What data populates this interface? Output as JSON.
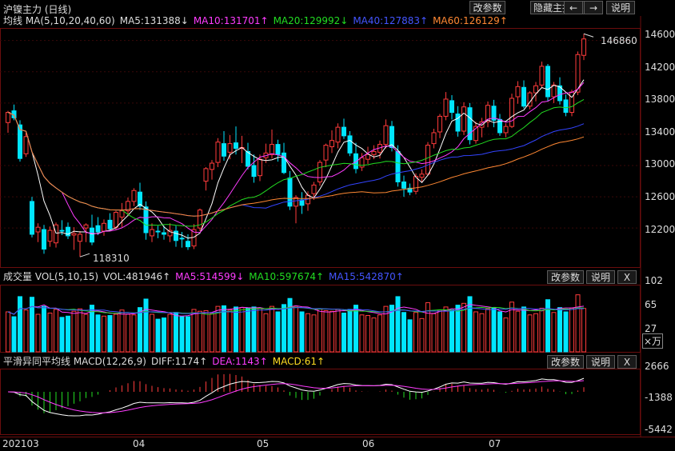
{
  "title": "沪镍主力 (日线)",
  "toolbar": {
    "params": "改参数",
    "hide_indicators": "隐藏主指标",
    "prev": "←",
    "next": "→",
    "help": "说明"
  },
  "price_panel": {
    "indicator": "均线 MA(5,10,20,40,60)",
    "mas": [
      {
        "label": "MA5:131388↓",
        "color": "#ffffff"
      },
      {
        "label": "MA10:131701↑",
        "color": "#ff3cff"
      },
      {
        "label": "MA20:129992↓",
        "color": "#22dd22"
      },
      {
        "label": "MA40:127883↑",
        "color": "#3344ff"
      },
      {
        "label": "MA60:126129↑",
        "color": "#ff8833"
      }
    ],
    "y_ticks": [
      "146000",
      "142000",
      "138000",
      "134000",
      "130000",
      "126000",
      "122000"
    ],
    "high_label": "146860",
    "low_label": "118310"
  },
  "volume_panel": {
    "indicator": "成交量 VOL(5,10,15)",
    "vol": {
      "label": "VOL:481946↑",
      "color": "#dddddd"
    },
    "mas": [
      {
        "label": "MA5:514599↓",
        "color": "#ff3cff"
      },
      {
        "label": "MA10:597674↑",
        "color": "#22dd22"
      },
      {
        "label": "MA15:542870↑",
        "color": "#4455ff"
      }
    ],
    "params": "改参数",
    "help": "说明",
    "close": "X",
    "y_ticks": [
      "102",
      "65",
      "27"
    ],
    "unit": "×万"
  },
  "macd_panel": {
    "indicator": "平滑异同平均线 MACD(12,26,9)",
    "diff": {
      "label": "DIFF:1174↑",
      "color": "#dddddd"
    },
    "dea": {
      "label": "DEA:1143↑",
      "color": "#ff3cff"
    },
    "macd": {
      "label": "MACD:61↑",
      "color": "#ffdd22"
    },
    "params": "改参数",
    "help": "说明",
    "close": "X",
    "y_ticks": [
      "2666",
      "-1388",
      "-5442"
    ]
  },
  "x_axis": [
    "202103",
    "04",
    "05",
    "06",
    "07"
  ],
  "chart_data": {
    "type": "candlestick",
    "title": "沪镍主力 (日线)",
    "price_axis_ticks": [
      146000,
      142000,
      138000,
      134000,
      130000,
      126000,
      122000
    ],
    "price_range": [
      117000,
      147500
    ],
    "candles": [
      [
        135500,
        137000,
        134200,
        136800
      ],
      [
        137000,
        137800,
        135800,
        136100
      ],
      [
        135200,
        135800,
        130500,
        130900
      ],
      [
        131500,
        134200,
        131100,
        133700
      ],
      [
        125400,
        126000,
        120800,
        121200
      ],
      [
        121500,
        122600,
        120200,
        122100
      ],
      [
        121800,
        122400,
        118700,
        119300
      ],
      [
        120300,
        122200,
        119600,
        121700
      ],
      [
        120100,
        122700,
        119500,
        122400
      ],
      [
        121700,
        123000,
        121100,
        121600
      ],
      [
        122100,
        122700,
        120600,
        121000
      ],
      [
        121100,
        122100,
        119200,
        121300
      ],
      [
        120300,
        121600,
        118310,
        121200
      ],
      [
        122000,
        122600,
        120200,
        122400
      ],
      [
        122000,
        123700,
        119800,
        120200
      ],
      [
        122300,
        123400,
        121100,
        121500
      ],
      [
        121600,
        123100,
        121000,
        122600
      ],
      [
        123000,
        123900,
        121700,
        121900
      ],
      [
        122100,
        124200,
        121800,
        124000
      ],
      [
        123400,
        125200,
        122100,
        124200
      ],
      [
        124200,
        125900,
        123500,
        125400
      ],
      [
        125400,
        127100,
        124800,
        126800
      ],
      [
        126600,
        127800,
        124300,
        124800
      ],
      [
        124700,
        125400,
        120500,
        121400
      ],
      [
        121000,
        122600,
        120200,
        121800
      ],
      [
        121600,
        122300,
        120700,
        121500
      ],
      [
        121400,
        122300,
        120500,
        121200
      ],
      [
        121000,
        122600,
        120200,
        121700
      ],
      [
        121600,
        122300,
        119600,
        120400
      ],
      [
        120700,
        121500,
        119500,
        120600
      ],
      [
        120300,
        121200,
        119200,
        119600
      ],
      [
        119700,
        122500,
        119300,
        121800
      ],
      [
        122000,
        124500,
        121600,
        124300
      ],
      [
        128000,
        129800,
        126800,
        129600
      ],
      [
        129500,
        130700,
        128200,
        130300
      ],
      [
        130400,
        133500,
        129800,
        133000
      ],
      [
        132800,
        134400,
        130600,
        131200
      ],
      [
        131700,
        133900,
        130800,
        132800
      ],
      [
        132900,
        135000,
        131400,
        132200
      ],
      [
        132200,
        133800,
        130300,
        132300
      ],
      [
        131800,
        132900,
        129500,
        129900
      ],
      [
        130000,
        131400,
        127800,
        128600
      ],
      [
        128700,
        131400,
        128000,
        130800
      ],
      [
        131000,
        132800,
        130300,
        131600
      ],
      [
        131400,
        134600,
        130900,
        132700
      ],
      [
        132700,
        133300,
        130500,
        131400
      ],
      [
        131600,
        132900,
        128900,
        129100
      ],
      [
        128400,
        129300,
        124300,
        124800
      ],
      [
        124800,
        126200,
        122600,
        125900
      ],
      [
        125600,
        126600,
        123800,
        124900
      ],
      [
        125100,
        126700,
        124200,
        126200
      ],
      [
        126400,
        127900,
        125600,
        127500
      ],
      [
        127900,
        130700,
        127400,
        130400
      ],
      [
        130700,
        132800,
        129800,
        132600
      ],
      [
        132400,
        134500,
        131600,
        133200
      ],
      [
        133000,
        135400,
        132200,
        134900
      ],
      [
        134900,
        136000,
        133400,
        133800
      ],
      [
        133800,
        134400,
        131200,
        131600
      ],
      [
        131500,
        132900,
        129000,
        129600
      ],
      [
        129800,
        131600,
        129300,
        131000
      ],
      [
        130800,
        132400,
        130200,
        131400
      ],
      [
        131400,
        132600,
        130800,
        131800
      ],
      [
        131700,
        133200,
        130900,
        132700
      ],
      [
        132700,
        135900,
        132200,
        135100
      ],
      [
        135000,
        135700,
        131800,
        132300
      ],
      [
        131800,
        132600,
        127300,
        127900
      ],
      [
        127900,
        128700,
        126000,
        127100
      ],
      [
        127100,
        127700,
        126200,
        126600
      ],
      [
        126700,
        129000,
        126300,
        128600
      ],
      [
        128500,
        129500,
        127800,
        128900
      ],
      [
        128900,
        133000,
        128700,
        132600
      ],
      [
        132800,
        134700,
        132200,
        134200
      ],
      [
        134300,
        136600,
        133500,
        136300
      ],
      [
        136300,
        139400,
        135800,
        138500
      ],
      [
        138300,
        139000,
        135900,
        136800
      ],
      [
        136600,
        137600,
        133700,
        134400
      ],
      [
        134400,
        138100,
        133900,
        137500
      ],
      [
        137400,
        138000,
        132700,
        133300
      ],
      [
        133200,
        135600,
        132800,
        135000
      ],
      [
        134900,
        136100,
        133600,
        135600
      ],
      [
        135600,
        138200,
        134900,
        137700
      ],
      [
        137600,
        138400,
        134900,
        135800
      ],
      [
        135900,
        136600,
        133800,
        134200
      ],
      [
        134200,
        135400,
        133600,
        135000
      ],
      [
        135000,
        139200,
        134800,
        138600
      ],
      [
        138800,
        140800,
        137900,
        140100
      ],
      [
        140000,
        140900,
        137300,
        137600
      ],
      [
        137600,
        139500,
        137200,
        139300
      ],
      [
        139300,
        140700,
        138200,
        140200
      ],
      [
        140300,
        143300,
        139900,
        142700
      ],
      [
        142700,
        143000,
        138200,
        138800
      ],
      [
        138800,
        140700,
        138000,
        140300
      ],
      [
        140200,
        141300,
        137800,
        138300
      ],
      [
        138400,
        139100,
        136300,
        136800
      ],
      [
        136800,
        139700,
        136300,
        139400
      ],
      [
        139400,
        144600,
        139000,
        144200
      ],
      [
        144100,
        146860,
        143500,
        146200
      ]
    ]
  }
}
